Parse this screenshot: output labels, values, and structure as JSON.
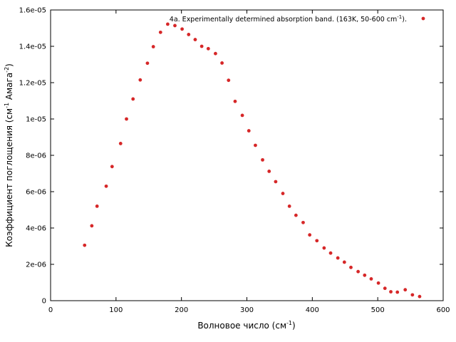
{
  "chart_data": {
    "type": "scatter",
    "xlabel": "Волновое число (см",
    "xlabel_sup": "-1",
    "xlabel_end": ")",
    "ylabel_a": "Коэффициент поглощения (см",
    "ylabel_sup1": "-1",
    "ylabel_b": " Амага",
    "ylabel_sup2": "-2",
    "ylabel_end": ")",
    "xlim": [
      0,
      600
    ],
    "ylim": [
      0,
      1.6e-05
    ],
    "x_ticks": [
      0,
      100,
      200,
      300,
      400,
      500,
      600
    ],
    "x_tick_labels": [
      "0",
      "100",
      "200",
      "300",
      "400",
      "500",
      "600"
    ],
    "y_ticks": [
      0,
      2e-06,
      4e-06,
      6e-06,
      8e-06,
      1e-05,
      1.2e-05,
      1.4e-05,
      1.6e-05
    ],
    "y_tick_labels": [
      "0",
      "2e-06",
      "4e-06",
      "6e-06",
      "8e-06",
      "1e-05",
      "1.2e-05",
      "1.4e-05",
      "1.6e-05"
    ],
    "grid": false,
    "legend_position": "top-right",
    "color": "#d62728",
    "series": [
      {
        "name": "4a. Experimentally determined absorption band. (163K, 50-600 cm",
        "name_sup": "-1",
        "name_end": ").",
        "x": [
          52,
          63,
          71,
          85,
          94,
          107,
          116,
          126,
          137,
          148,
          157,
          168,
          179,
          190,
          201,
          211,
          221,
          231,
          241,
          252,
          262,
          272,
          282,
          293,
          303,
          313,
          324,
          334,
          344,
          355,
          365,
          375,
          386,
          396,
          407,
          418,
          428,
          439,
          449,
          459,
          470,
          480,
          490,
          501,
          511,
          520,
          530,
          542,
          553,
          564
        ],
        "y": [
          3.05e-06,
          4.12e-06,
          5.2e-06,
          6.3e-06,
          7.38e-06,
          8.65e-06,
          1e-05,
          1.11e-05,
          1.215e-05,
          1.307e-05,
          1.398e-05,
          1.477e-05,
          1.522e-05,
          1.514e-05,
          1.495e-05,
          1.465e-05,
          1.437e-05,
          1.4e-05,
          1.387e-05,
          1.36e-05,
          1.308e-05,
          1.213e-05,
          1.097e-05,
          1.02e-05,
          9.35e-06,
          8.55e-06,
          7.75e-06,
          7.12e-06,
          6.55e-06,
          5.9e-06,
          5.2e-06,
          4.7e-06,
          4.3e-06,
          3.62e-06,
          3.3e-06,
          2.9e-06,
          2.62e-06,
          2.35e-06,
          2.12e-06,
          1.83e-06,
          1.6e-06,
          1.4e-06,
          1.2e-06,
          9.7e-07,
          6.8e-07,
          4.9e-07,
          4.7e-07,
          6e-07,
          3.2e-07,
          2.3e-07
        ]
      }
    ]
  }
}
